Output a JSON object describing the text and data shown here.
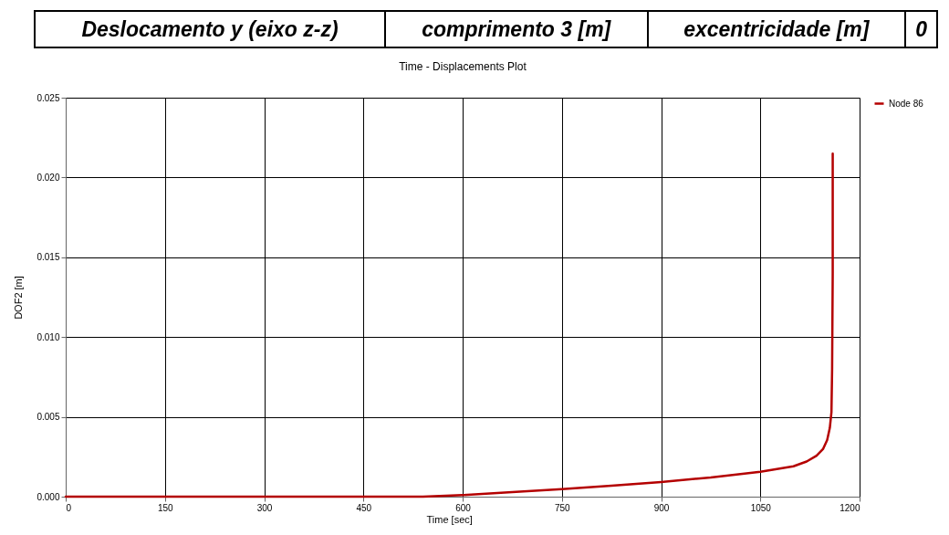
{
  "chart_data": {
    "type": "line",
    "title": "Time - Displacements Plot",
    "xlabel": "Time [sec]",
    "ylabel": "DOF2 [m]",
    "annotations": [
      "Deslocamento y (eixo z-z)",
      "comprimento 3 [m]",
      "excentricidade [m]",
      "0"
    ],
    "series": [
      {
        "name": "Node 86",
        "color": "#b40000",
        "x": [
          0,
          150,
          300,
          450,
          540,
          600,
          675,
          750,
          825,
          900,
          975,
          1050,
          1100,
          1120,
          1135,
          1145,
          1151,
          1155,
          1157.5,
          1158.5,
          1159.4,
          1159.4
        ],
        "values": [
          0,
          0,
          0,
          0,
          0,
          0.0001,
          0.00028,
          0.00047,
          0.00068,
          0.00092,
          0.0012,
          0.00156,
          0.0019,
          0.0022,
          0.00257,
          0.003,
          0.00355,
          0.0043,
          0.0053,
          0.008,
          0.014,
          0.0215
        ]
      }
    ],
    "xlim": [
      0,
      1200
    ],
    "xticks": [
      0,
      150,
      300,
      450,
      600,
      750,
      900,
      1050,
      1200
    ],
    "ylim": [
      0,
      0.025
    ],
    "yticks": [
      {
        "value": 0,
        "label": "0.000"
      },
      {
        "value": 0.005,
        "label": "0.005"
      },
      {
        "value": 0.01,
        "label": "0.010"
      },
      {
        "value": 0.015,
        "label": "0.015"
      },
      {
        "value": 0.02,
        "label": "0.020"
      },
      {
        "value": 0.025,
        "label": "0.025"
      }
    ],
    "grid": true,
    "legend": "right"
  }
}
